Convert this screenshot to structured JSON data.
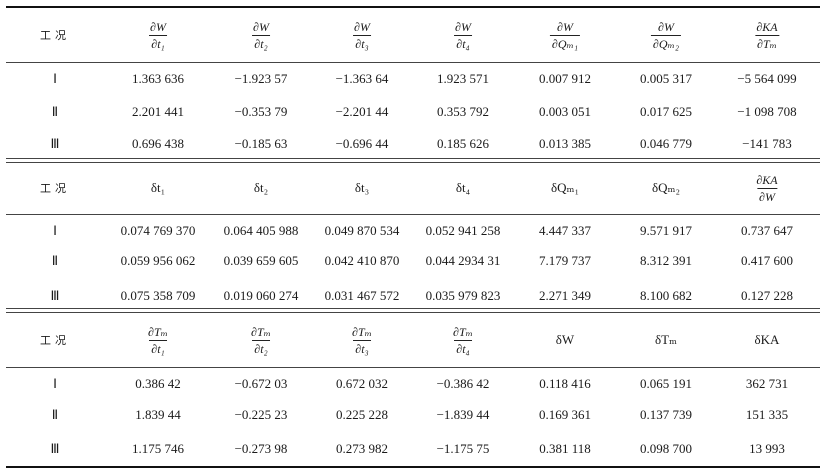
{
  "sections": [
    {
      "label": "工况",
      "headers": [
        {
          "type": "frac",
          "num": "∂W",
          "den": "∂t₁"
        },
        {
          "type": "frac",
          "num": "∂W",
          "den": "∂t₂"
        },
        {
          "type": "frac",
          "num": "∂W",
          "den": "∂t₃"
        },
        {
          "type": "frac",
          "num": "∂W",
          "den": "∂t₄"
        },
        {
          "type": "frac",
          "num": "∂W",
          "den": "∂Qₘ₁"
        },
        {
          "type": "frac",
          "num": "∂W",
          "den": "∂Qₘ₂"
        },
        {
          "type": "frac",
          "num": "∂KA",
          "den": "∂Tₘ"
        }
      ],
      "rows": [
        {
          "case": "Ⅰ",
          "values": [
            "1.363 636",
            "−1.923 57",
            "−1.363 64",
            "1.923 571",
            "0.007 912",
            "0.005 317",
            "−5 564 099"
          ]
        },
        {
          "case": "Ⅱ",
          "values": [
            "2.201 441",
            "−0.353 79",
            "−2.201 44",
            "0.353 792",
            "0.003 051",
            "0.017 625",
            "−1 098 708"
          ]
        },
        {
          "case": "Ⅲ",
          "values": [
            "0.696 438",
            "−0.185 63",
            "−0.696 44",
            "0.185 626",
            "0.013 385",
            "0.046 779",
            "−141 783"
          ]
        }
      ]
    },
    {
      "label": "工况",
      "headers": [
        {
          "type": "text",
          "text": "δt₁"
        },
        {
          "type": "text",
          "text": "δt₂"
        },
        {
          "type": "text",
          "text": "δt₃"
        },
        {
          "type": "text",
          "text": "δt₄"
        },
        {
          "type": "text",
          "text": "δQₘ₁"
        },
        {
          "type": "text",
          "text": "δQₘ₂"
        },
        {
          "type": "frac",
          "num": "∂KA",
          "den": "∂W"
        }
      ],
      "rows": [
        {
          "case": "Ⅰ",
          "values": [
            "0.074 769 370",
            "0.064 405 988",
            "0.049 870 534",
            "0.052 941 258",
            "4.447 337",
            "9.571 917",
            "0.737 647"
          ]
        },
        {
          "case": "Ⅱ",
          "values": [
            "0.059 956 062",
            "0.039 659 605",
            "0.042 410 870",
            "0.044 2934 31",
            "7.179 737",
            "8.312 391",
            "0.417 600"
          ]
        },
        {
          "case": "Ⅲ",
          "values": [
            "0.075 358 709",
            "0.019 060 274",
            "0.031 467 572",
            "0.035 979 823",
            "2.271 349",
            "8.100 682",
            "0.127 228"
          ]
        }
      ]
    },
    {
      "label": "工况",
      "headers": [
        {
          "type": "frac",
          "num": "∂Tₘ",
          "den": "∂t₁"
        },
        {
          "type": "frac",
          "num": "∂Tₘ",
          "den": "∂t₂"
        },
        {
          "type": "frac",
          "num": "∂Tₘ",
          "den": "∂t₃"
        },
        {
          "type": "frac",
          "num": "∂Tₘ",
          "den": "∂t₄"
        },
        {
          "type": "text",
          "text": "δW"
        },
        {
          "type": "text",
          "text": "δTₘ"
        },
        {
          "type": "text",
          "text": "δKA"
        }
      ],
      "rows": [
        {
          "case": "Ⅰ",
          "values": [
            "0.386 42",
            "−0.672 03",
            "0.672 032",
            "−0.386 42",
            "0.118 416",
            "0.065 191",
            "362 731"
          ]
        },
        {
          "case": "Ⅱ",
          "values": [
            "1.839 44",
            "−0.225 23",
            "0.225 228",
            "−1.839 44",
            "0.169 361",
            "0.137 739",
            "151 335"
          ]
        },
        {
          "case": "Ⅲ",
          "values": [
            "1.175 746",
            "−0.273 98",
            "0.273 982",
            "−1.175 75",
            "0.381 118",
            "0.098 700",
            "13 993"
          ]
        }
      ]
    }
  ]
}
